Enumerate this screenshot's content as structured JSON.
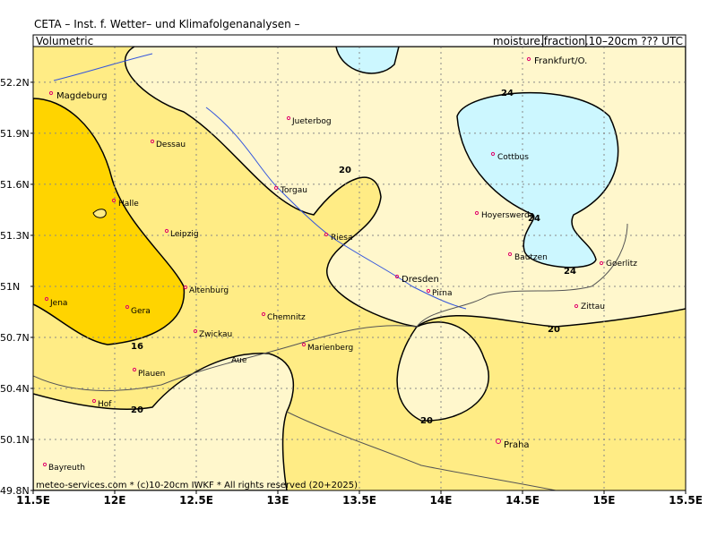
{
  "header": {
    "title": "CETA – Inst. f. Wetter– und Klimafolgenanalysen –",
    "left_label": "Volumetric",
    "right_label_prefix": "moisture.",
    "right_label_box": "fraction",
    "right_label_suffix": ".10–20cm ??? UTC"
  },
  "footer": "meteo-services.com * (c)10-20cm IWKF * All rights reserved (20+2025)",
  "map": {
    "xlim": [
      11.5,
      15.5
    ],
    "ylim": [
      49.8,
      52.41
    ],
    "xticks": [
      {
        "value": 11.5,
        "label": "11.5E"
      },
      {
        "value": 12,
        "label": "12E"
      },
      {
        "value": 12.5,
        "label": "12.5E"
      },
      {
        "value": 13,
        "label": "13E"
      },
      {
        "value": 13.5,
        "label": "13.5E"
      },
      {
        "value": 14,
        "label": "14E"
      },
      {
        "value": 14.5,
        "label": "14.5E"
      },
      {
        "value": 15,
        "label": "15E"
      },
      {
        "value": 15.5,
        "label": "15.5E"
      }
    ],
    "yticks": [
      {
        "value": 49.8,
        "label": "49.8N"
      },
      {
        "value": 50.1,
        "label": "50.1N"
      },
      {
        "value": 50.4,
        "label": "50.4N"
      },
      {
        "value": 50.7,
        "label": "50.7N"
      },
      {
        "value": 51,
        "label": "51N"
      },
      {
        "value": 51.3,
        "label": "51.3N"
      },
      {
        "value": 51.6,
        "label": "51.6N"
      },
      {
        "value": 51.9,
        "label": "51.9N"
      },
      {
        "value": 52.2,
        "label": "52.2N"
      }
    ],
    "grid": true,
    "cities": [
      "Magdeburg",
      "Frankfurt/O.",
      "Jueterbog",
      "Dessau",
      "Cottbus",
      "Torgau",
      "Halle",
      "Hoyerswerda",
      "Leipzig",
      "Riesa",
      "Bautzen",
      "Goerlitz",
      "Dresden",
      "Altenburg",
      "Pirna",
      "Jena",
      "Gera",
      "Zittau",
      "Chemnitz",
      "Zwickau",
      "Marienberg",
      "Aue",
      "Plauen",
      "Hof",
      "Praha",
      "Bayreuth"
    ],
    "contour_labels": [
      16,
      20,
      20,
      20,
      20,
      24,
      24,
      24
    ]
  }
}
